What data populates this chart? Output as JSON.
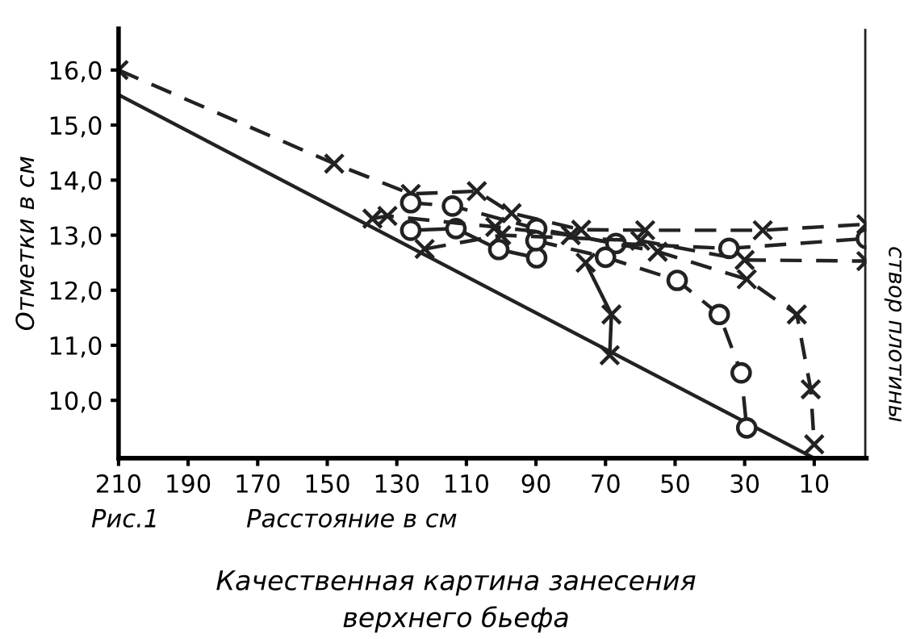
{
  "chart_data": {
    "type": "line",
    "title": "Качественная картина занесения\nверхнего бьефа",
    "xlabel": "Расстояние в см",
    "ylabel": "Отметки в см",
    "annotations": [
      "Рис.1"
    ],
    "xlim": [
      210,
      -5
    ],
    "ylim": [
      8.95,
      16.75
    ],
    "xticks": [
      210,
      190,
      170,
      150,
      130,
      110,
      90,
      70,
      50,
      30,
      10
    ],
    "yticks": [
      {
        "value": 10,
        "label": "10,0"
      },
      {
        "value": 11,
        "label": "11,0"
      },
      {
        "value": 12,
        "label": "12,0"
      },
      {
        "value": 13,
        "label": "13,0"
      },
      {
        "value": 14,
        "label": "14,0"
      },
      {
        "value": 15,
        "label": "15,0"
      },
      {
        "value": 16,
        "label": "16,0"
      }
    ],
    "grid": false,
    "legend": false,
    "ref_lines": [
      {
        "axis": "x",
        "value": -5,
        "label": "створ плотины",
        "color": "#222222",
        "line_style": "solid"
      }
    ],
    "series": [
      {
        "color": "#222222",
        "line_style": "solid",
        "marker": "none",
        "x": [
          210,
          10
        ],
        "values": [
          15.55,
          8.95
        ]
      },
      {
        "color": "#222222",
        "line_style": "dashed",
        "marker": "cross",
        "x": [
          210,
          148,
          126,
          107,
          97,
          77,
          58.6,
          24.8,
          -5
        ],
        "values": [
          16.0,
          14.3,
          13.75,
          13.8,
          13.4,
          13.1,
          13.09,
          13.09,
          13.2
        ]
      },
      {
        "color": "#222222",
        "line_style": "dashed",
        "marker": "circle",
        "x": [
          126,
          114,
          89.8,
          67,
          34.5,
          -5
        ],
        "values": [
          13.59,
          13.53,
          13.12,
          12.85,
          12.76,
          12.94
        ]
      },
      {
        "color": "#222222",
        "line_style": "solid",
        "marker": "circle",
        "x": [
          126,
          113,
          100.7,
          89.8
        ],
        "values": [
          13.09,
          13.12,
          12.74,
          12.59
        ]
      },
      {
        "color": "#222222",
        "line_style": "solid",
        "marker": "cross",
        "x": [
          75.7,
          68.3,
          68.8
        ],
        "values": [
          12.5,
          11.56,
          10.82
        ]
      },
      {
        "color": "#222222",
        "line_style": "dashed",
        "marker": "circle",
        "x": [
          90,
          70,
          49.4,
          37.3,
          31,
          29.4
        ],
        "values": [
          12.9,
          12.6,
          12.18,
          11.56,
          10.5,
          9.5
        ]
      },
      {
        "color": "#222222",
        "line_style": "dashed",
        "marker": "cross",
        "x": [
          137,
          132.7,
          101.7,
          80,
          55,
          29.4,
          15,
          11,
          10
        ],
        "values": [
          13.3,
          13.35,
          13.15,
          13.0,
          12.7,
          12.2,
          11.56,
          10.2,
          9.2
        ]
      },
      {
        "color": "#222222",
        "line_style": "dashed",
        "marker": "cross",
        "x": [
          122,
          100,
          60,
          30,
          -5
        ],
        "values": [
          12.75,
          13.0,
          12.9,
          12.55,
          12.53
        ]
      }
    ]
  }
}
